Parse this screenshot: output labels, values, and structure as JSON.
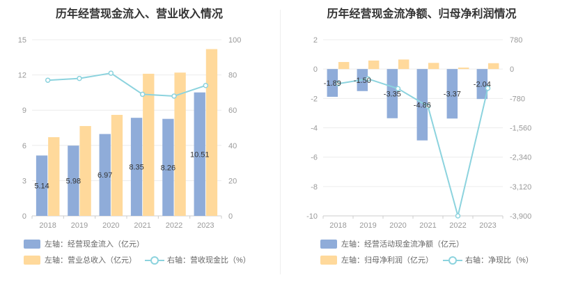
{
  "colors": {
    "blue": "#8facd9",
    "orange": "#ffd99b",
    "line": "#8cd3de"
  },
  "left": {
    "title": "历年经营现金流入、营业收入情况",
    "legend": {
      "blue": "左轴：经营现金流入（亿元）",
      "orange": "左轴：营业总收入（亿元）",
      "line": "右轴：营收现金比（%）"
    }
  },
  "right": {
    "title": "历年经营现金流净额、归母净利润情况",
    "legend": {
      "blue": "左轴：经营活动现金流净额（亿元）",
      "orange": "左轴：归母净利润（亿元）",
      "line": "右轴：净现比（%）"
    }
  },
  "chart_data": [
    {
      "type": "bar",
      "title": "历年经营现金流入、营业收入情况",
      "categories": [
        "2018",
        "2019",
        "2020",
        "2021",
        "2022",
        "2023"
      ],
      "y_left": {
        "min": 0,
        "max": 15,
        "ticks": [
          "0",
          "3",
          "6",
          "9",
          "12",
          "15"
        ]
      },
      "y_right": {
        "min": 0,
        "max": 100,
        "ticks": [
          "0",
          "20",
          "40",
          "60",
          "80",
          "100"
        ]
      },
      "series": [
        {
          "name": "经营现金流入（亿元）",
          "axis": "left",
          "kind": "bar",
          "values": [
            5.14,
            5.98,
            6.97,
            8.35,
            8.26,
            10.51
          ],
          "labels": [
            "5.14",
            "5.98",
            "6.97",
            "8.35",
            "8.26",
            "10.51"
          ]
        },
        {
          "name": "营业总收入（亿元）",
          "axis": "left",
          "kind": "bar",
          "values": [
            6.7,
            7.65,
            8.6,
            12.1,
            12.2,
            14.2
          ]
        },
        {
          "name": "营收现金比（%）",
          "axis": "right",
          "kind": "line",
          "values": [
            77,
            78,
            81,
            69,
            68,
            74
          ]
        }
      ]
    },
    {
      "type": "bar",
      "title": "历年经营现金流净额、归母净利润情况",
      "categories": [
        "2018",
        "2019",
        "2020",
        "2021",
        "2022",
        "2023"
      ],
      "y_left": {
        "min": -10,
        "max": 2,
        "ticks": [
          "-10",
          "-8",
          "-6",
          "-4",
          "-2",
          "0",
          "2"
        ]
      },
      "y_right": {
        "min": -3900,
        "max": 780,
        "ticks": [
          "-3,900",
          "-3,120",
          "-2,340",
          "-1,560",
          "-780",
          "0",
          "780"
        ]
      },
      "series": [
        {
          "name": "经营活动现金流净额（亿元）",
          "axis": "left",
          "kind": "bar",
          "values": [
            -1.89,
            -1.5,
            -3.35,
            -4.86,
            -3.37,
            -2.04
          ],
          "labels": [
            "-1.89",
            "-1.50",
            "-3.35",
            "-4.86",
            "-3.37",
            "-2.04"
          ]
        },
        {
          "name": "归母净利润（亿元）",
          "axis": "left",
          "kind": "bar",
          "values": [
            0.48,
            0.58,
            0.65,
            0.42,
            0.1,
            0.4
          ]
        },
        {
          "name": "净现比（%）",
          "axis": "right",
          "kind": "line",
          "values": [
            -390,
            -260,
            -520,
            -990,
            -3900,
            -510
          ]
        }
      ]
    }
  ]
}
